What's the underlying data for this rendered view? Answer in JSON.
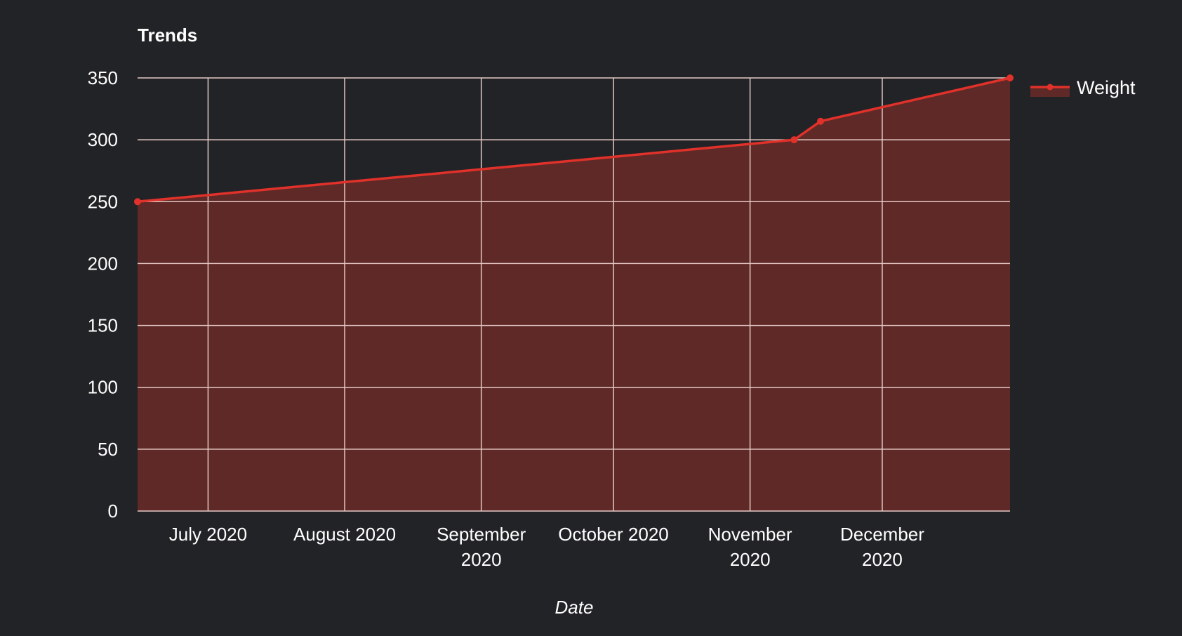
{
  "colors": {
    "background": "#222326",
    "line": "#e0312a",
    "area": "#5e2926",
    "grid_dark": "#cfcfcf",
    "grid_light": "#e6c9c7"
  },
  "chart_data": {
    "type": "area",
    "title": "Trends",
    "xlabel": "Date",
    "ylabel": "",
    "ylim": [
      0,
      350
    ],
    "xlim": [
      "2020-06-15",
      "2020-12-30"
    ],
    "y_ticks": [
      0,
      50,
      100,
      150,
      200,
      250,
      300,
      350
    ],
    "x_ticks": [
      {
        "date": "2020-07-01",
        "label": [
          "July 2020"
        ]
      },
      {
        "date": "2020-08-01",
        "label": [
          "August 2020"
        ]
      },
      {
        "date": "2020-09-01",
        "label": [
          "September",
          "2020"
        ]
      },
      {
        "date": "2020-10-01",
        "label": [
          "October 2020"
        ]
      },
      {
        "date": "2020-11-01",
        "label": [
          "November",
          "2020"
        ]
      },
      {
        "date": "2020-12-01",
        "label": [
          "December",
          "2020"
        ]
      }
    ],
    "grid": true,
    "legend_position": "right",
    "series": [
      {
        "name": "Weight",
        "points": [
          {
            "x": "2020-06-15",
            "y": 250
          },
          {
            "x": "2020-11-11",
            "y": 300
          },
          {
            "x": "2020-11-17",
            "y": 315
          },
          {
            "x": "2020-12-30",
            "y": 350
          }
        ]
      }
    ]
  }
}
